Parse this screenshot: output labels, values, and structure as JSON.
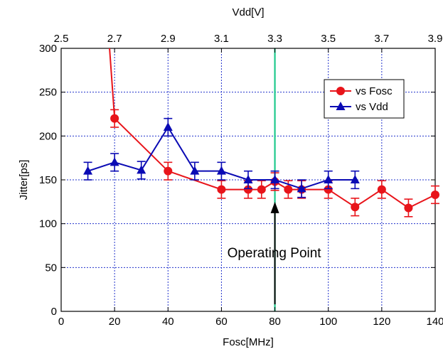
{
  "chart_data": {
    "type": "line",
    "xlabel": "Fosc[MHz]",
    "ylabel": "Jitter[ps]",
    "x2label": "Vdd[V]",
    "xlim": [
      0,
      140
    ],
    "ylim": [
      0,
      300
    ],
    "x2lim": [
      2.5,
      3.9
    ],
    "xticks": [
      0,
      20,
      40,
      60,
      80,
      100,
      120,
      140
    ],
    "yticks": [
      0,
      50,
      100,
      150,
      200,
      250,
      300
    ],
    "x2ticks": [
      "2.5",
      "2.7",
      "2.9",
      "3.1",
      "3.3",
      "3.5",
      "3.7",
      "3.9"
    ],
    "grid": true,
    "legend_position": "upper-right",
    "series": [
      {
        "name": "vs Fosc",
        "color": "#e8141a",
        "marker": "circle",
        "axis": "bottom",
        "points": [
          {
            "x": 18,
            "y": 305,
            "err": null
          },
          {
            "x": 20,
            "y": 220,
            "err": 10
          },
          {
            "x": 40,
            "y": 160,
            "err": 10
          },
          {
            "x": 60,
            "y": 139,
            "err": 10
          },
          {
            "x": 70,
            "y": 139,
            "err": 10
          },
          {
            "x": 75,
            "y": 139,
            "err": 10
          },
          {
            "x": 80,
            "y": 148,
            "err": 10
          },
          {
            "x": 85,
            "y": 139,
            "err": 10
          },
          {
            "x": 90,
            "y": 139,
            "err": 10
          },
          {
            "x": 100,
            "y": 139,
            "err": 10
          },
          {
            "x": 110,
            "y": 119,
            "err": 10
          },
          {
            "x": 120,
            "y": 139,
            "err": 10
          },
          {
            "x": 130,
            "y": 118,
            "err": 10
          },
          {
            "x": 140,
            "y": 133,
            "err": 10
          }
        ]
      },
      {
        "name": "vs Vdd",
        "color": "#0a0ab4",
        "marker": "triangle",
        "axis": "top",
        "points": [
          {
            "x": 2.6,
            "y": 160,
            "err": 10
          },
          {
            "x": 2.7,
            "y": 170,
            "err": 10
          },
          {
            "x": 2.8,
            "y": 161,
            "err": 10
          },
          {
            "x": 2.9,
            "y": 210,
            "err": 10
          },
          {
            "x": 3.0,
            "y": 160,
            "err": 10
          },
          {
            "x": 3.1,
            "y": 160,
            "err": 10
          },
          {
            "x": 3.2,
            "y": 150,
            "err": 10
          },
          {
            "x": 3.3,
            "y": 150,
            "err": 10
          },
          {
            "x": 3.4,
            "y": 140,
            "err": 10
          },
          {
            "x": 3.5,
            "y": 150,
            "err": 10
          },
          {
            "x": 3.6,
            "y": 150,
            "err": 10
          }
        ]
      }
    ],
    "vline": {
      "x": 80,
      "color": "#1ec98c"
    },
    "annotation": {
      "text": "Operating Point",
      "arrow_x": 80,
      "arrow_tip_y": 125,
      "arrow_base_y": 8
    }
  }
}
